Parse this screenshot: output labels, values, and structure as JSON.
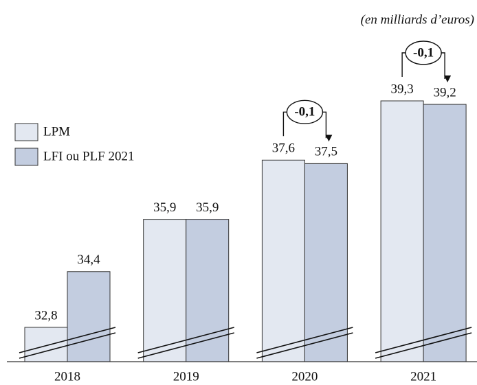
{
  "chart_data": {
    "type": "bar",
    "subtitle": "(en milliards d’euros)",
    "categories": [
      "2018",
      "2019",
      "2020",
      "2021"
    ],
    "series": [
      {
        "name": "LPM",
        "color": "#e3e8f1",
        "values": [
          32.8,
          35.9,
          37.6,
          39.3
        ],
        "value_labels": [
          "32,8",
          "35,9",
          "37,6",
          "39,3"
        ]
      },
      {
        "name": "LFI ou PLF 2021",
        "color": "#c3cde0",
        "values": [
          34.4,
          35.9,
          37.5,
          39.2
        ],
        "value_labels": [
          "34,4",
          "35,9",
          "37,5",
          "39,2"
        ]
      }
    ],
    "annotations": [
      {
        "text": "-0,1",
        "category": "2020"
      },
      {
        "text": "-0,1",
        "category": "2021"
      }
    ],
    "legend": "upper left"
  }
}
